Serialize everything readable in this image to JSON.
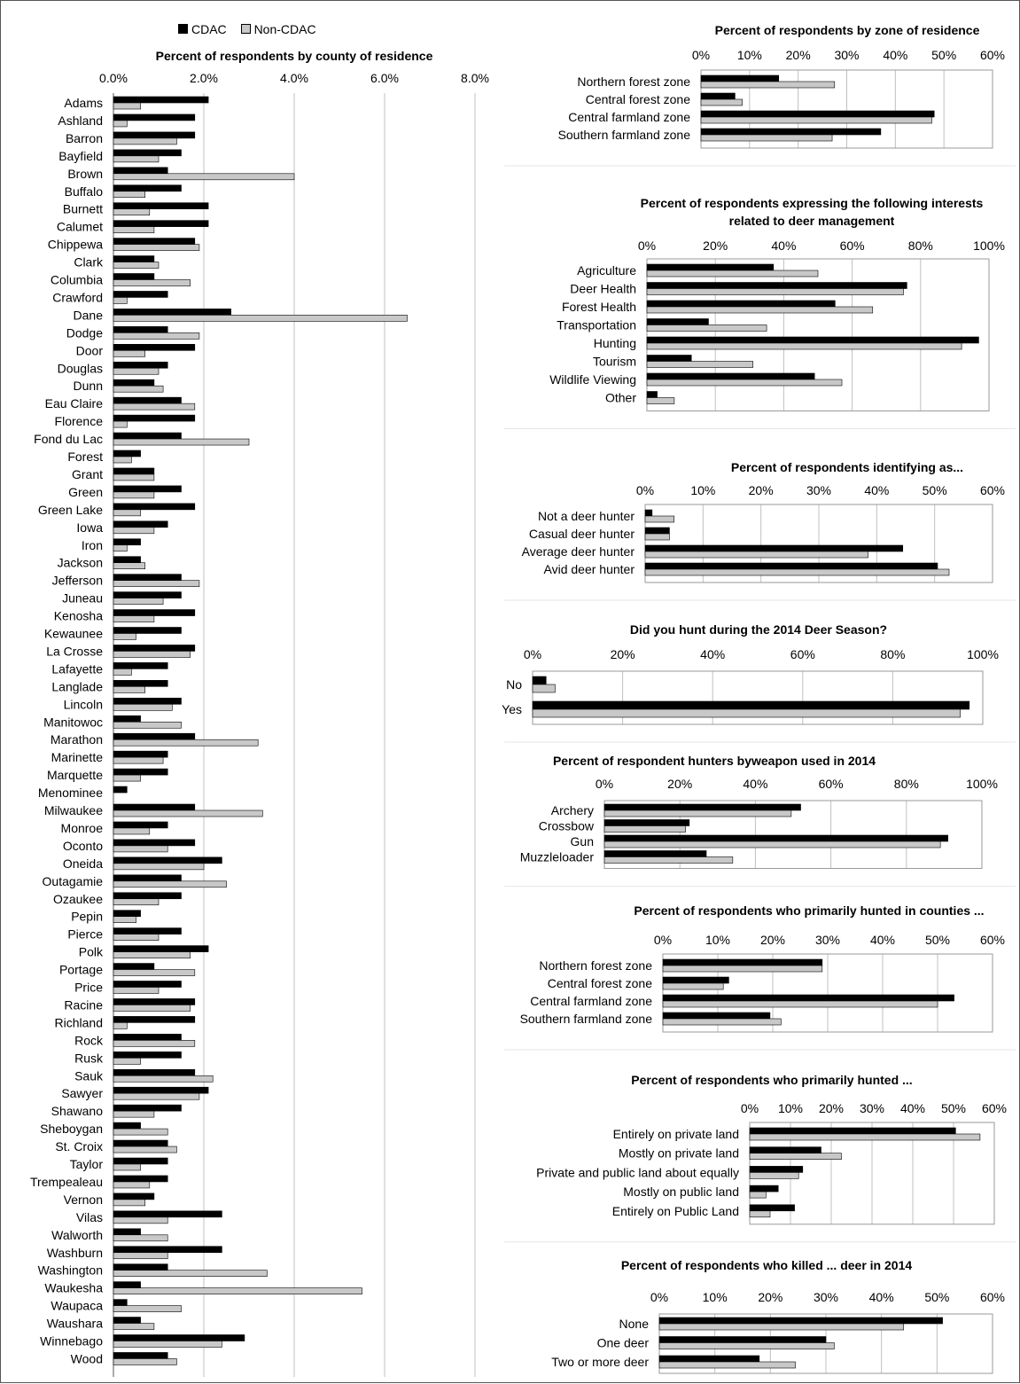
{
  "legend": {
    "cdac": "CDAC",
    "non_cdac": "Non-CDAC"
  },
  "colors": {
    "cdac": "#000000",
    "non_cdac": "#c8c8c8",
    "grid": "#c0c0c0"
  },
  "chart_data": [
    {
      "id": "county",
      "type": "bar",
      "title": "Percent of respondents by county of residence",
      "xlim": [
        0,
        8
      ],
      "ticks": [
        "0.0%",
        "2.0%",
        "4.0%",
        "6.0%",
        "8.0%"
      ],
      "categories": [
        "Adams",
        "Ashland",
        "Barron",
        "Bayfield",
        "Brown",
        "Buffalo",
        "Burnett",
        "Calumet",
        "Chippewa",
        "Clark",
        "Columbia",
        "Crawford",
        "Dane",
        "Dodge",
        "Door",
        "Douglas",
        "Dunn",
        "Eau Claire",
        "Florence",
        "Fond du Lac",
        "Forest",
        "Grant",
        "Green",
        "Green Lake",
        "Iowa",
        "Iron",
        "Jackson",
        "Jefferson",
        "Juneau",
        "Kenosha",
        "Kewaunee",
        "La Crosse",
        "Lafayette",
        "Langlade",
        "Lincoln",
        "Manitowoc",
        "Marathon",
        "Marinette",
        "Marquette",
        "Menominee",
        "Milwaukee",
        "Monroe",
        "Oconto",
        "Oneida",
        "Outagamie",
        "Ozaukee",
        "Pepin",
        "Pierce",
        "Polk",
        "Portage",
        "Price",
        "Racine",
        "Richland",
        "Rock",
        "Rusk",
        "Sauk",
        "Sawyer",
        "Shawano",
        "Sheboygan",
        "St. Croix",
        "Taylor",
        "Trempealeau",
        "Vernon",
        "Vilas",
        "Walworth",
        "Washburn",
        "Washington",
        "Waukesha",
        "Waupaca",
        "Waushara",
        "Winnebago",
        "Wood"
      ],
      "series": [
        {
          "name": "CDAC",
          "values": [
            2.1,
            1.8,
            1.8,
            1.5,
            1.2,
            1.5,
            2.1,
            2.1,
            1.8,
            0.9,
            0.9,
            1.2,
            2.6,
            1.2,
            1.8,
            1.2,
            0.9,
            1.5,
            1.8,
            1.5,
            0.6,
            0.9,
            1.5,
            1.8,
            1.2,
            0.6,
            0.6,
            1.5,
            1.5,
            1.8,
            1.5,
            1.8,
            1.2,
            1.2,
            1.5,
            0.6,
            1.8,
            1.2,
            1.2,
            0.3,
            1.8,
            1.2,
            1.8,
            2.4,
            1.5,
            1.5,
            0.6,
            1.5,
            2.1,
            0.9,
            1.5,
            1.8,
            1.8,
            1.5,
            1.5,
            1.8,
            2.1,
            1.5,
            0.6,
            1.2,
            1.2,
            1.2,
            0.9,
            2.4,
            0.6,
            2.4,
            1.2,
            0.6,
            0.3,
            0.6,
            2.9,
            1.2
          ]
        },
        {
          "name": "Non-CDAC",
          "values": [
            0.6,
            0.3,
            1.4,
            1.0,
            4.0,
            0.7,
            0.8,
            0.9,
            1.9,
            1.0,
            1.7,
            0.3,
            6.5,
            1.9,
            0.7,
            1.0,
            1.1,
            1.8,
            0.3,
            3.0,
            0.4,
            0.9,
            0.9,
            0.6,
            0.9,
            0.3,
            0.7,
            1.9,
            1.1,
            0.9,
            0.5,
            1.7,
            0.4,
            0.7,
            1.3,
            1.5,
            3.2,
            1.1,
            0.6,
            0.0,
            3.3,
            0.8,
            1.2,
            2.0,
            2.5,
            1.0,
            0.5,
            1.0,
            1.7,
            1.8,
            1.0,
            1.7,
            0.3,
            1.8,
            0.6,
            2.2,
            1.9,
            0.9,
            1.2,
            1.4,
            0.6,
            0.8,
            0.7,
            1.2,
            1.2,
            1.2,
            3.4,
            5.5,
            1.5,
            0.9,
            2.4,
            1.4
          ]
        }
      ]
    },
    {
      "id": "zone",
      "type": "bar",
      "title": "Percent of respondents by zone of residence",
      "xlim": [
        0,
        60
      ],
      "ticks": [
        "0%",
        "10%",
        "20%",
        "30%",
        "40%",
        "50%",
        "60%"
      ],
      "categories": [
        "Northern forest zone",
        "Central forest zone",
        "Central farmland zone",
        "Southern farmland zone"
      ],
      "series": [
        {
          "name": "CDAC",
          "values": [
            16,
            7,
            48,
            37
          ]
        },
        {
          "name": "Non-CDAC",
          "values": [
            27.5,
            8.5,
            47.5,
            27
          ]
        }
      ]
    },
    {
      "id": "interests",
      "type": "bar",
      "title": "Percent of respondents expressing the following interests related to deer management",
      "xlim": [
        0,
        100
      ],
      "ticks": [
        "0%",
        "20%",
        "40%",
        "60%",
        "80%",
        "100%"
      ],
      "categories": [
        "Agriculture",
        "Deer Health",
        "Forest Health",
        "Transportation",
        "Hunting",
        "Tourism",
        "Wildlife Viewing",
        "Other"
      ],
      "series": [
        {
          "name": "CDAC",
          "values": [
            37,
            76,
            55,
            18,
            97,
            13,
            49,
            3
          ]
        },
        {
          "name": "Non-CDAC",
          "values": [
            50,
            75,
            66,
            35,
            92,
            31,
            57,
            8
          ]
        }
      ]
    },
    {
      "id": "identify",
      "type": "bar",
      "title": "Percent of respondents identifying as...",
      "xlim": [
        0,
        60
      ],
      "ticks": [
        "0%",
        "10%",
        "20%",
        "30%",
        "40%",
        "50%",
        "60%"
      ],
      "categories": [
        "Not a deer hunter",
        "Casual deer hunter",
        "Average deer hunter",
        "Avid deer hunter"
      ],
      "series": [
        {
          "name": "CDAC",
          "values": [
            1.2,
            4.2,
            44.5,
            50.5
          ]
        },
        {
          "name": "Non-CDAC",
          "values": [
            5,
            4.2,
            38.5,
            52.5
          ]
        }
      ]
    },
    {
      "id": "hunt2014",
      "type": "bar",
      "title": "Did you hunt during the 2014 Deer Season?",
      "xlim": [
        0,
        100
      ],
      "ticks": [
        "0%",
        "20%",
        "40%",
        "60%",
        "80%",
        "100%"
      ],
      "categories": [
        "No",
        "Yes"
      ],
      "series": [
        {
          "name": "CDAC",
          "values": [
            3,
            97
          ]
        },
        {
          "name": "Non-CDAC",
          "values": [
            5,
            95
          ]
        }
      ]
    },
    {
      "id": "weapon",
      "type": "bar",
      "title": "Percent of respondent hunters byweapon used in 2014",
      "xlim": [
        0,
        100
      ],
      "ticks": [
        "0%",
        "20%",
        "40%",
        "60%",
        "80%",
        "100%"
      ],
      "categories": [
        "Archery",
        "Crossbow",
        "Gun",
        "Muzzleloader"
      ],
      "series": [
        {
          "name": "CDAC",
          "values": [
            52,
            22.5,
            91,
            27
          ]
        },
        {
          "name": "Non-CDAC",
          "values": [
            49.5,
            21.5,
            89,
            34
          ]
        }
      ]
    },
    {
      "id": "hunted_counties",
      "type": "bar",
      "title": "Percent of respondents who primarily hunted in counties  ...",
      "xlim": [
        0,
        60
      ],
      "ticks": [
        "0%",
        "10%",
        "20%",
        "30%",
        "40%",
        "50%",
        "60%"
      ],
      "categories": [
        "Northern forest zone",
        "Central forest zone",
        "Central farmland zone",
        "Southern farmland zone"
      ],
      "series": [
        {
          "name": "CDAC",
          "values": [
            29,
            12,
            53,
            19.5
          ]
        },
        {
          "name": "Non-CDAC",
          "values": [
            29,
            11,
            50,
            21.5
          ]
        }
      ]
    },
    {
      "id": "hunted_land",
      "type": "bar",
      "title": "Percent of respondents who primarily hunted ...",
      "xlim": [
        0,
        60
      ],
      "ticks": [
        "0%",
        "10%",
        "20%",
        "30%",
        "40%",
        "50%",
        "60%"
      ],
      "categories": [
        "Entirely on private land",
        "Mostly on private land",
        "Private and public land about equally",
        "Mostly on public land",
        "Entirely on Public Land"
      ],
      "series": [
        {
          "name": "CDAC",
          "values": [
            50.5,
            17.5,
            13,
            7,
            11
          ]
        },
        {
          "name": "Non-CDAC",
          "values": [
            56.5,
            22.5,
            12,
            4,
            5
          ]
        }
      ]
    },
    {
      "id": "killed",
      "type": "bar",
      "title": "Percent of respondents who killed ... deer in 2014",
      "xlim": [
        0,
        60
      ],
      "ticks": [
        "0%",
        "10%",
        "20%",
        "30%",
        "40%",
        "50%",
        "60%"
      ],
      "categories": [
        "None",
        "One deer",
        "Two or more deer"
      ],
      "series": [
        {
          "name": "CDAC",
          "values": [
            51,
            30,
            18
          ]
        },
        {
          "name": "Non-CDAC",
          "values": [
            44,
            31.5,
            24.5
          ]
        }
      ]
    }
  ]
}
